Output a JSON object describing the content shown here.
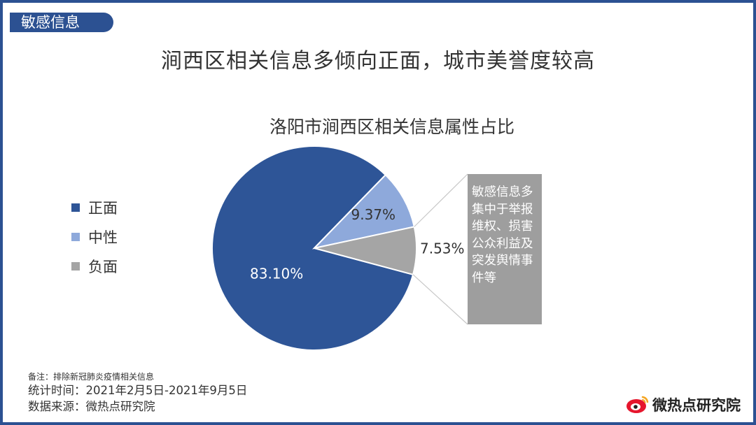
{
  "tag": "敏感信息",
  "headline": "涧西区相关信息多倾向正面，城市美誉度较高",
  "chart_data": {
    "type": "pie",
    "title": "洛阳市涧西区相关信息属性占比",
    "categories": [
      "正面",
      "中性",
      "负面"
    ],
    "values": [
      83.1,
      9.37,
      7.53
    ],
    "labels": [
      "83.10%",
      "9.37%",
      "7.53%"
    ],
    "colors": [
      "#2e5597",
      "#8ea9db",
      "#a5a5a5"
    ],
    "legend_position": "left"
  },
  "callout_text": "敏感信息多集中于举报维权、损害公众利益及突发舆情事件等",
  "notes": {
    "remark": "备注：排除新冠肺炎疫情相关信息",
    "period": "统计时间：2021年2月5日-2021年9月5日",
    "source": "数据来源：微热点研究院"
  },
  "logo": {
    "text": "微热点研究院",
    "icon": "weibo-eye-icon"
  }
}
